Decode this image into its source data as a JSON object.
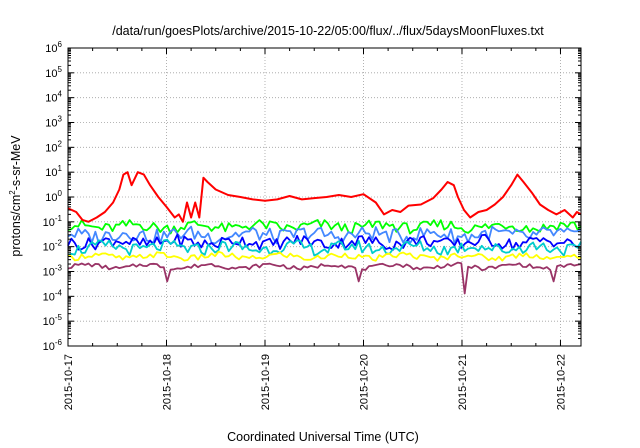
{
  "chart_data": {
    "type": "line",
    "title": "/data/run/goesPlots/archive/2015-10-22/05:00/flux/../flux/5daysMoonFluxes.txt",
    "xlabel": "Coordinated Universal Time (UTC)",
    "ylabel": {
      "base": "protons/cm",
      "sup": "2",
      "rest": "-s-sr-MeV"
    },
    "x_ticks": [
      "2015-10-17",
      "2015-10-18",
      "2015-10-19",
      "2015-10-20",
      "2015-10-21",
      "2015-10-22"
    ],
    "xlim": [
      "2015-10-17T00:00",
      "2015-10-22T05:00"
    ],
    "y_scale": "log",
    "ylim": [
      1e-06,
      1000000.0
    ],
    "y_ticks": [
      {
        "base": "10",
        "exp": "-6"
      },
      {
        "base": "10",
        "exp": "-5"
      },
      {
        "base": "10",
        "exp": "-4"
      },
      {
        "base": "10",
        "exp": "-3"
      },
      {
        "base": "10",
        "exp": "-2"
      },
      {
        "base": "10",
        "exp": "-1"
      },
      {
        "base": "10",
        "exp": "0"
      },
      {
        "base": "10",
        "exp": "1"
      },
      {
        "base": "10",
        "exp": "2"
      },
      {
        "base": "10",
        "exp": "3"
      },
      {
        "base": "10",
        "exp": "4"
      },
      {
        "base": "10",
        "exp": "5"
      },
      {
        "base": "10",
        "exp": "6"
      }
    ],
    "grid": true,
    "legend": "none",
    "series": [
      {
        "color": "#ff0000",
        "points": [
          [
            "2015-10-17T00:00",
            0.35
          ],
          [
            "2015-10-17T02:00",
            0.25
          ],
          [
            "2015-10-17T03:30",
            0.12
          ],
          [
            "2015-10-17T05:00",
            0.1
          ],
          [
            "2015-10-17T07:00",
            0.15
          ],
          [
            "2015-10-17T09:00",
            0.25
          ],
          [
            "2015-10-17T11:00",
            0.6
          ],
          [
            "2015-10-17T12:30",
            2.0
          ],
          [
            "2015-10-17T13:30",
            8.0
          ],
          [
            "2015-10-17T14:30",
            10.0
          ],
          [
            "2015-10-17T15:30",
            3.0
          ],
          [
            "2015-10-17T17:00",
            10.0
          ],
          [
            "2015-10-17T18:30",
            8.0
          ],
          [
            "2015-10-17T20:00",
            3.0
          ],
          [
            "2015-10-17T22:00",
            1.0
          ],
          [
            "2015-10-18T00:00",
            0.4
          ],
          [
            "2015-10-18T02:00",
            0.15
          ],
          [
            "2015-10-18T03:00",
            0.2
          ],
          [
            "2015-10-18T04:00",
            0.1
          ],
          [
            "2015-10-18T05:00",
            0.6
          ],
          [
            "2015-10-18T06:00",
            0.15
          ],
          [
            "2015-10-18T07:00",
            0.6
          ],
          [
            "2015-10-18T08:00",
            0.15
          ],
          [
            "2015-10-18T09:00",
            6.0
          ],
          [
            "2015-10-18T10:00",
            4.0
          ],
          [
            "2015-10-18T12:00",
            2.0
          ],
          [
            "2015-10-18T15:00",
            1.2
          ],
          [
            "2015-10-18T18:00",
            1.0
          ],
          [
            "2015-10-18T21:00",
            0.8
          ],
          [
            "2015-10-19T00:00",
            0.7
          ],
          [
            "2015-10-19T03:00",
            0.8
          ],
          [
            "2015-10-19T06:00",
            1.1
          ],
          [
            "2015-10-19T09:00",
            0.8
          ],
          [
            "2015-10-19T12:00",
            0.9
          ],
          [
            "2015-10-19T15:00",
            1.0
          ],
          [
            "2015-10-19T18:00",
            1.2
          ],
          [
            "2015-10-19T21:00",
            1.0
          ],
          [
            "2015-10-20T00:00",
            1.3
          ],
          [
            "2015-10-20T03:00",
            0.6
          ],
          [
            "2015-10-20T05:00",
            0.2
          ],
          [
            "2015-10-20T07:00",
            0.3
          ],
          [
            "2015-10-20T09:00",
            0.25
          ],
          [
            "2015-10-20T11:00",
            0.45
          ],
          [
            "2015-10-20T14:00",
            0.5
          ],
          [
            "2015-10-20T17:00",
            0.9
          ],
          [
            "2015-10-20T19:00",
            2.0
          ],
          [
            "2015-10-20T20:30",
            4.0
          ],
          [
            "2015-10-20T22:00",
            3.0
          ],
          [
            "2015-10-20T23:00",
            1.0
          ],
          [
            "2015-10-21T00:30",
            0.3
          ],
          [
            "2015-10-21T02:00",
            0.15
          ],
          [
            "2015-10-21T04:00",
            0.25
          ],
          [
            "2015-10-21T06:00",
            0.3
          ],
          [
            "2015-10-21T08:00",
            0.5
          ],
          [
            "2015-10-21T10:00",
            1.0
          ],
          [
            "2015-10-21T12:00",
            3.0
          ],
          [
            "2015-10-21T13:30",
            8.0
          ],
          [
            "2015-10-21T15:00",
            4.0
          ],
          [
            "2015-10-21T17:00",
            1.5
          ],
          [
            "2015-10-21T19:00",
            0.5
          ],
          [
            "2015-10-21T21:00",
            0.3
          ],
          [
            "2015-10-21T23:00",
            0.2
          ],
          [
            "2015-10-22T01:00",
            0.3
          ],
          [
            "2015-10-22T03:00",
            0.15
          ],
          [
            "2015-10-22T04:00",
            0.25
          ],
          [
            "2015-10-22T05:00",
            0.2
          ]
        ]
      },
      {
        "color": "#00ff00",
        "base": 0.065,
        "amp": 0.22,
        "dips": []
      },
      {
        "color": "#4488ff",
        "base": 0.03,
        "amp": 0.3,
        "dips": []
      },
      {
        "color": "#0000ff",
        "base": 0.015,
        "amp": 0.25,
        "dips": []
      },
      {
        "color": "#00cccc",
        "base": 0.009,
        "amp": 0.25,
        "dips": []
      },
      {
        "color": "#ffff00",
        "base": 0.004,
        "amp": 0.12,
        "dips": []
      },
      {
        "color": "#993366",
        "base": 0.0016,
        "amp": 0.08,
        "dips": [
          [
            "2015-10-18T00:30",
            0.0004
          ],
          [
            "2015-10-19T23:00",
            0.0004
          ],
          [
            "2015-10-21T00:30",
            0.00013
          ],
          [
            "2015-10-21T22:30",
            0.0004
          ]
        ]
      }
    ]
  }
}
